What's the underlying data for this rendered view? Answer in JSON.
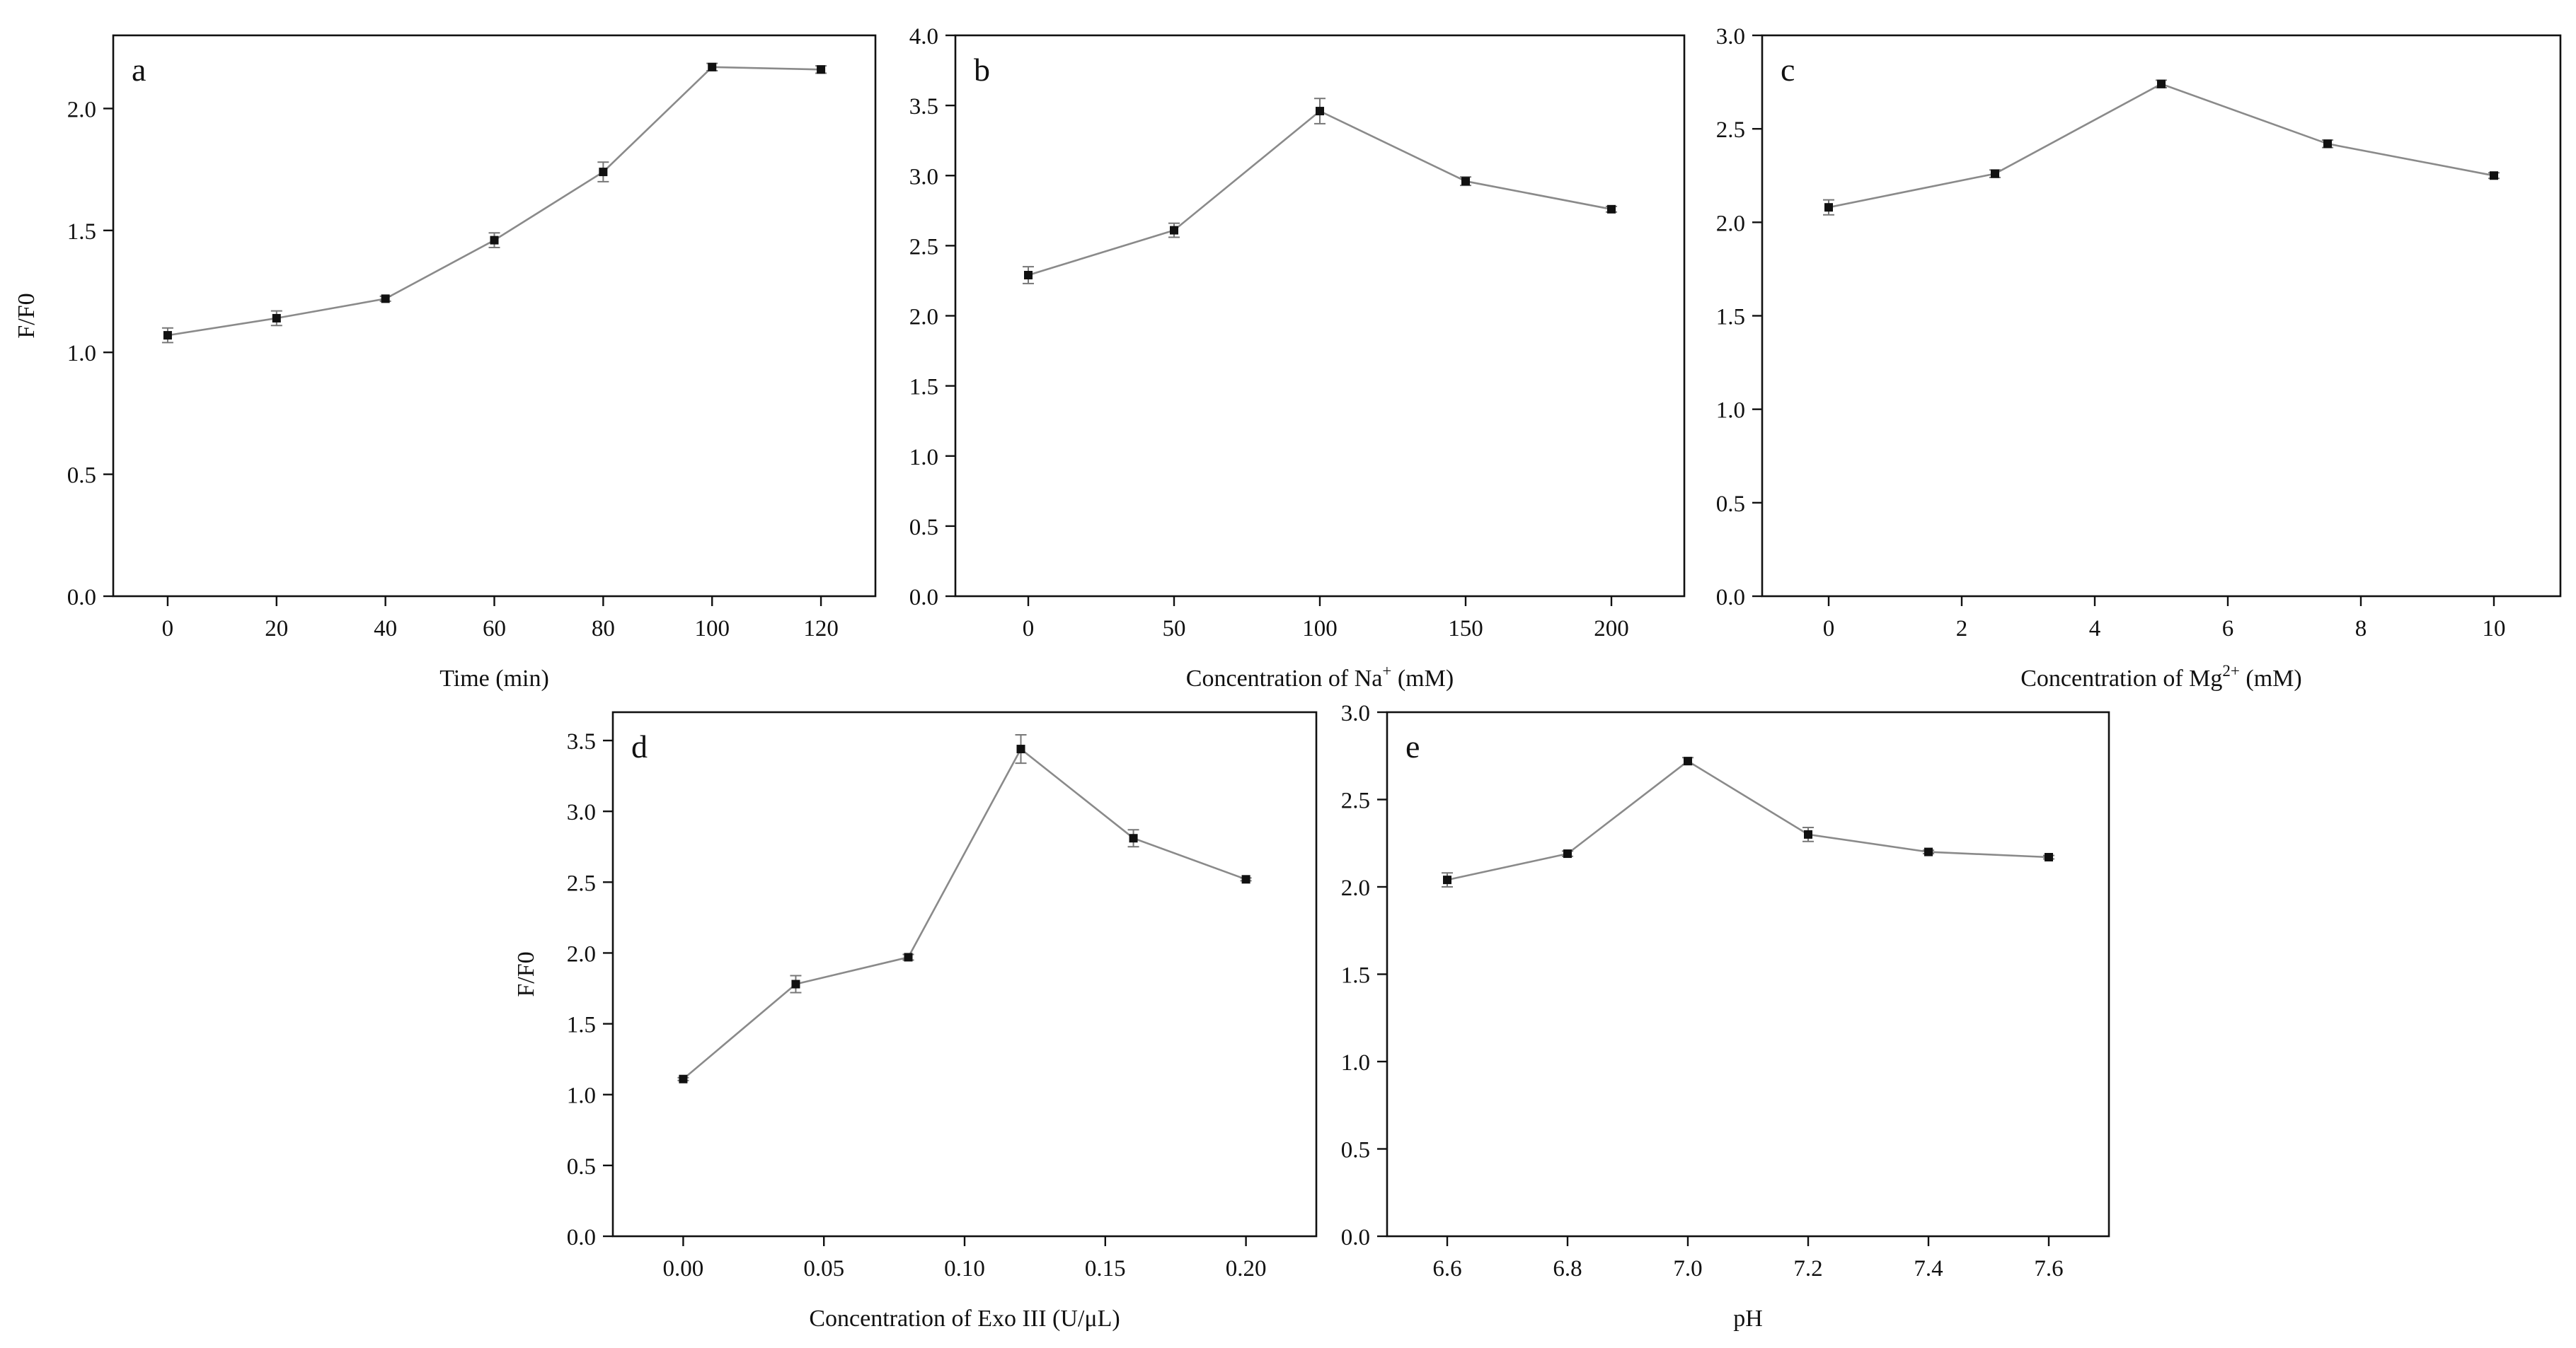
{
  "chart_data": [
    {
      "panel_label": "a",
      "type": "line",
      "xlabel": "Time (min)",
      "ylabel": "F/F0",
      "xlim": [
        -10,
        130
      ],
      "ylim": [
        0,
        2.3
      ],
      "xticks": [
        0,
        20,
        40,
        60,
        80,
        100,
        120
      ],
      "yticks": [
        0.0,
        0.5,
        1.0,
        1.5,
        2.0
      ],
      "xtick_labels": [
        "0",
        "20",
        "40",
        "60",
        "80",
        "100",
        "120"
      ],
      "ytick_labels": [
        "0.0",
        "0.5",
        "1.0",
        "1.5",
        "2.0"
      ],
      "x": [
        0,
        20,
        40,
        60,
        80,
        100,
        120
      ],
      "y": [
        1.07,
        1.14,
        1.22,
        1.46,
        1.74,
        2.17,
        2.16
      ],
      "err": [
        0.03,
        0.03,
        0.01,
        0.03,
        0.04,
        0.015,
        0.015
      ]
    },
    {
      "panel_label": "b",
      "type": "line",
      "xlabel": "Concentration of Na",
      "xlabel_sup": "+",
      "xlabel_tail": " (mM)",
      "ylabel": "",
      "xlim": [
        -25,
        225
      ],
      "ylim": [
        0,
        4.0
      ],
      "xticks": [
        0,
        50,
        100,
        150,
        200
      ],
      "yticks": [
        0.0,
        0.5,
        1.0,
        1.5,
        2.0,
        2.5,
        3.0,
        3.5,
        4.0
      ],
      "xtick_labels": [
        "0",
        "50",
        "100",
        "150",
        "200"
      ],
      "ytick_labels": [
        "0.0",
        "0.5",
        "1.0",
        "1.5",
        "2.0",
        "2.5",
        "3.0",
        "3.5",
        "4.0"
      ],
      "x": [
        0,
        50,
        100,
        150,
        200
      ],
      "y": [
        2.29,
        2.61,
        3.46,
        2.96,
        2.76
      ],
      "err": [
        0.06,
        0.05,
        0.09,
        0.03,
        0.02
      ]
    },
    {
      "panel_label": "c",
      "type": "line",
      "xlabel": "Concentration of Mg",
      "xlabel_sup": "2+",
      "xlabel_tail": " (mM)",
      "ylabel": "",
      "xlim": [
        -1,
        11
      ],
      "ylim": [
        0,
        3.0
      ],
      "xticks": [
        0,
        2,
        4,
        6,
        8,
        10
      ],
      "yticks": [
        0.0,
        0.5,
        1.0,
        1.5,
        2.0,
        2.5,
        3.0
      ],
      "xtick_labels": [
        "0",
        "2",
        "4",
        "6",
        "8",
        "10"
      ],
      "ytick_labels": [
        "0.0",
        "0.5",
        "1.0",
        "1.5",
        "2.0",
        "2.5",
        "3.0"
      ],
      "x": [
        0,
        2.5,
        5,
        7.5,
        10
      ],
      "y": [
        2.08,
        2.26,
        2.74,
        2.42,
        2.25
      ],
      "err": [
        0.04,
        0.02,
        0.02,
        0.02,
        0.015
      ]
    },
    {
      "panel_label": "d",
      "type": "line",
      "xlabel": "Concentration of Exo III (U/μL)",
      "ylabel": "F/F0",
      "xlim": [
        -0.025,
        0.225
      ],
      "ylim": [
        0,
        3.7
      ],
      "xticks": [
        0.0,
        0.05,
        0.1,
        0.15,
        0.2
      ],
      "yticks": [
        0.0,
        0.5,
        1.0,
        1.5,
        2.0,
        2.5,
        3.0,
        3.5
      ],
      "xtick_labels": [
        "0.00",
        "0.05",
        "0.10",
        "0.15",
        "0.20"
      ],
      "ytick_labels": [
        "0.0",
        "0.5",
        "1.0",
        "1.5",
        "2.0",
        "2.5",
        "3.0",
        "3.5"
      ],
      "x": [
        0.0,
        0.04,
        0.08,
        0.12,
        0.16,
        0.2
      ],
      "y": [
        1.11,
        1.78,
        1.97,
        3.44,
        2.81,
        2.52
      ],
      "err": [
        0.01,
        0.06,
        0.02,
        0.1,
        0.06,
        0.01
      ]
    },
    {
      "panel_label": "e",
      "type": "line",
      "xlabel": "pH",
      "ylabel": "",
      "xlim": [
        6.5,
        7.7
      ],
      "ylim": [
        0,
        3.0
      ],
      "xticks": [
        6.6,
        6.8,
        7.0,
        7.2,
        7.4,
        7.6
      ],
      "yticks": [
        0.0,
        0.5,
        1.0,
        1.5,
        2.0,
        2.5,
        3.0
      ],
      "xtick_labels": [
        "6.6",
        "6.8",
        "7.0",
        "7.2",
        "7.4",
        "7.6"
      ],
      "ytick_labels": [
        "0.0",
        "0.5",
        "1.0",
        "1.5",
        "2.0",
        "2.5",
        "3.0"
      ],
      "x": [
        6.6,
        6.8,
        7.0,
        7.2,
        7.4,
        7.6
      ],
      "y": [
        2.04,
        2.19,
        2.72,
        2.3,
        2.2,
        2.17
      ],
      "err": [
        0.04,
        0.015,
        0.02,
        0.04,
        0.01,
        0.01
      ]
    }
  ]
}
